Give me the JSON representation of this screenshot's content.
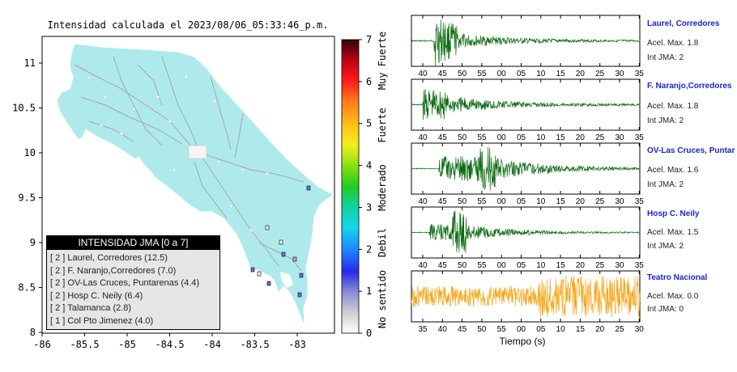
{
  "map": {
    "title": "Intensidad calculada el 2023/08/06_05:33:46_p.m.",
    "x_ticks": [
      "-86",
      "-85.5",
      "-85",
      "-84.5",
      "-84",
      "-83.5",
      "-83"
    ],
    "y_ticks": [
      "11",
      "10.5",
      "10",
      "9.5",
      "9",
      "8.5",
      "8"
    ],
    "land_color": "#aeeaeb",
    "colorbar": {
      "ticks": [
        "7",
        "6",
        "5",
        "4",
        "3",
        "2",
        "1",
        "0"
      ],
      "labels": [
        "Muy Fuerte",
        "Fuerte",
        "Moderado",
        "Debil",
        "No sentido"
      ]
    },
    "legend": {
      "title": "INTENSIDAD JMA [0 a 7]",
      "items": [
        "[ 2 ]  Laurel, Corredores (12.5)",
        "[ 2 ]  F. Naranjo,Corredores (7.0)",
        "[ 2 ]  OV-Las Cruces, Puntarenas (4.4)",
        "[ 2 ]  Hosp C. Neily (6.4)",
        "[ 2 ]  Talamanca (2.8)",
        "[ 1 ]  Col Pto Jimenez (4.0)"
      ]
    }
  },
  "seismograms": {
    "xlabel": "Tiempo (s)",
    "panels": [
      {
        "name": "Laurel, Corredores",
        "accel": "Acel. Max. 1.8",
        "jma": "Int JMA: 2",
        "color": "#0b6b12",
        "ticks": [
          "40",
          "45",
          "50",
          "55",
          "00",
          "05",
          "10",
          "15",
          "20",
          "25",
          "30",
          "35"
        ]
      },
      {
        "name": "F. Naranjo,Corredores",
        "accel": "Acel. Max. 1.8",
        "jma": "Int JMA: 2",
        "color": "#0b6b12",
        "ticks": [
          "40",
          "45",
          "50",
          "55",
          "00",
          "05",
          "10",
          "15",
          "20",
          "25",
          "30",
          "35"
        ]
      },
      {
        "name": "OV-Las Cruces, Puntar",
        "accel": "Acel. Max. 1.6",
        "jma": "Int JMA: 2",
        "color": "#0b6b12",
        "ticks": [
          "40",
          "45",
          "50",
          "55",
          "00",
          "05",
          "10",
          "15",
          "20",
          "25",
          "30",
          "35"
        ]
      },
      {
        "name": "Hosp C. Neily",
        "accel": "Acel. Max. 1.5",
        "jma": "Int JMA: 2",
        "color": "#0b6b12",
        "ticks": [
          "40",
          "45",
          "50",
          "55",
          "00",
          "05",
          "10",
          "15",
          "20",
          "25",
          "30",
          "35"
        ]
      },
      {
        "name": "Teatro Nacional",
        "accel": "Acel. Max. 0.0",
        "jma": "Int JMA: 0",
        "color": "#f5a414",
        "ticks": [
          "35",
          "40",
          "45",
          "50",
          "55",
          "00",
          "05",
          "10",
          "15",
          "20",
          "25",
          "30"
        ]
      }
    ]
  }
}
